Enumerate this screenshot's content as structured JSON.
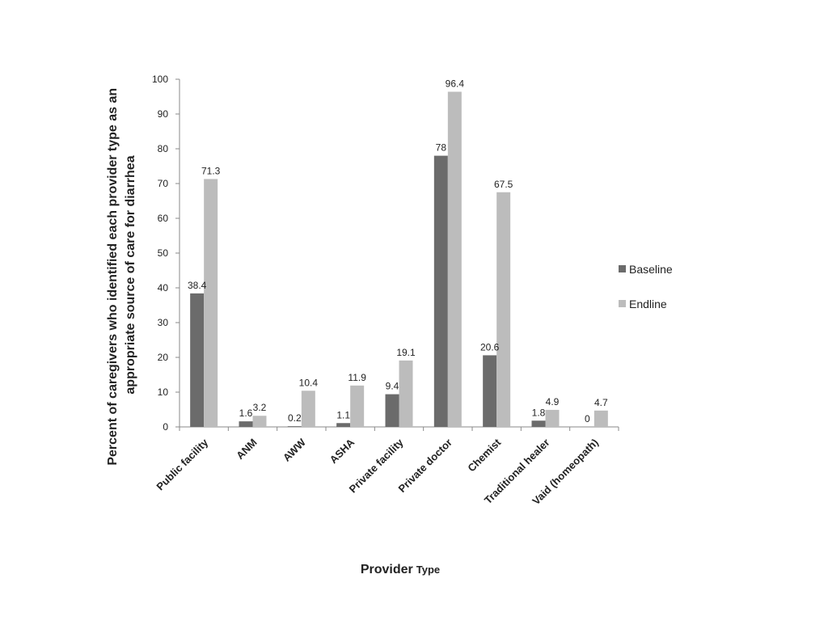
{
  "chart_data": {
    "type": "bar",
    "categories": [
      "Public facility",
      "ANM",
      "AWW",
      "ASHA",
      "Private facility",
      "Private doctor",
      "Chemist",
      "Traditional healer",
      "Vaid (homeopath)"
    ],
    "series": [
      {
        "name": "Baseline",
        "values": [
          38.4,
          1.6,
          0.2,
          1.1,
          9.4,
          78,
          20.6,
          1.8,
          0
        ],
        "labels": [
          "38.4",
          "1.6",
          "0.2",
          "1.1",
          "9.4",
          "78",
          "20.6",
          "1.8",
          "0"
        ],
        "color": "#6b6b6b"
      },
      {
        "name": "Endline",
        "values": [
          71.3,
          3.2,
          10.4,
          11.9,
          19.1,
          96.4,
          67.5,
          4.9,
          4.7
        ],
        "labels": [
          "71.3",
          "3.2",
          "10.4",
          "11.9",
          "19.1",
          "96.4",
          "67.5",
          "4.9",
          "4.7"
        ],
        "color": "#bcbcbc"
      }
    ],
    "ylabel_lines": [
      "Percent of caregivers who identified each provider type as an",
      "appropriate source of care for diarrhea"
    ],
    "xlabel_main": "Provider",
    "xlabel_sub": "Type",
    "ylim": [
      0,
      100
    ],
    "yticks": [
      0,
      10,
      20,
      30,
      40,
      50,
      60,
      70,
      80,
      90,
      100
    ],
    "grid": false,
    "legend_position": "right"
  }
}
